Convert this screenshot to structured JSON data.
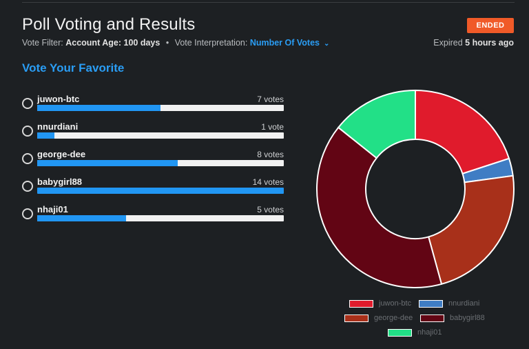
{
  "header": {
    "title": "Poll Voting and Results",
    "filter_label": "Vote Filter:",
    "filter_value": "Account Age: 100 days",
    "interp_label": "Vote Interpretation:",
    "interp_value": "Number Of Votes",
    "status_badge": "ENDED",
    "expired_prefix": "Expired",
    "expired_value": "5 hours ago"
  },
  "section_heading": "Vote Your Favorite",
  "options": [
    {
      "name": "juwon-btc",
      "votes_label": "7 votes",
      "votes": 7,
      "fill_pct": 50
    },
    {
      "name": "nnurdiani",
      "votes_label": "1 vote",
      "votes": 1,
      "fill_pct": 7
    },
    {
      "name": "george-dee",
      "votes_label": "8 votes",
      "votes": 8,
      "fill_pct": 57
    },
    {
      "name": "babygirl88",
      "votes_label": "14 votes",
      "votes": 14,
      "fill_pct": 100
    },
    {
      "name": "nhaji01",
      "votes_label": "5 votes",
      "votes": 5,
      "fill_pct": 36
    }
  ],
  "chart_data": {
    "type": "pie",
    "categories": [
      "juwon-btc",
      "nnurdiani",
      "george-dee",
      "babygirl88",
      "nhaji01"
    ],
    "values": [
      7,
      1,
      8,
      14,
      5
    ],
    "colors": [
      "#e01b2c",
      "#3f7dc4",
      "#a8301a",
      "#620514",
      "#22e087"
    ],
    "donut": true,
    "legend": "bottom"
  }
}
